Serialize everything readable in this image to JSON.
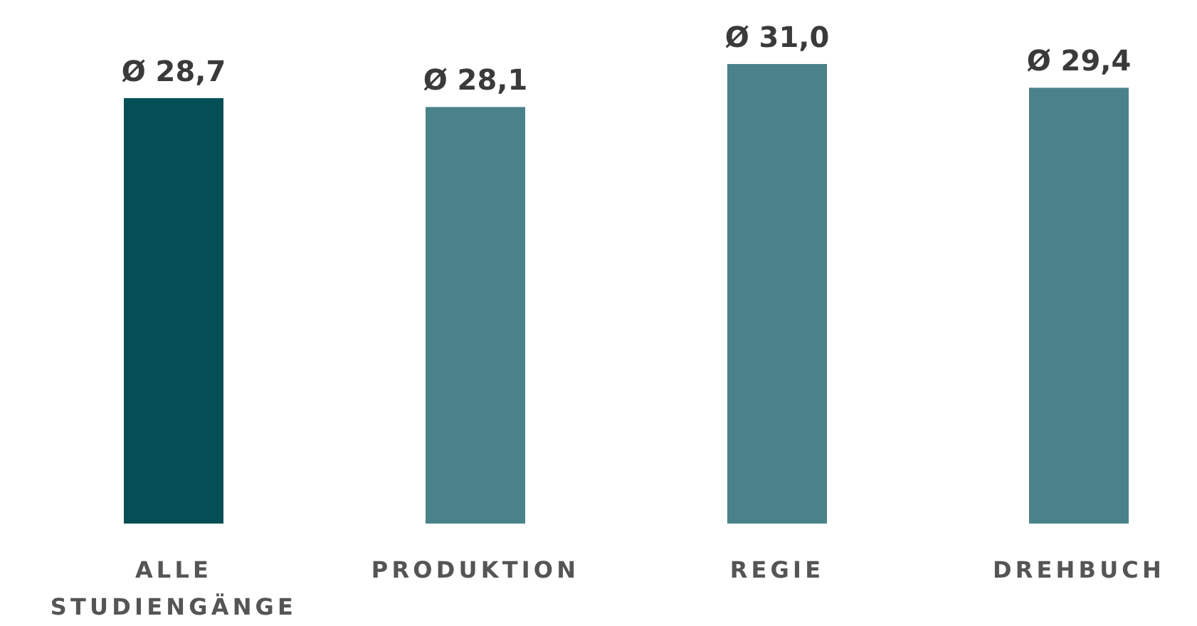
{
  "chart_data": {
    "type": "bar",
    "categories": [
      "ALLE STUDIENGÄNGE",
      "PRODUKTION",
      "REGIE",
      "DREHBUCH"
    ],
    "values": [
      28.7,
      28.1,
      31.0,
      29.4
    ],
    "colors": [
      "#034f55",
      "#4a828a",
      "#4a828a",
      "#4a828a"
    ],
    "value_labels": [
      "Ø 28,7",
      "Ø 28,1",
      "Ø 31,0",
      "Ø 29,4"
    ]
  }
}
